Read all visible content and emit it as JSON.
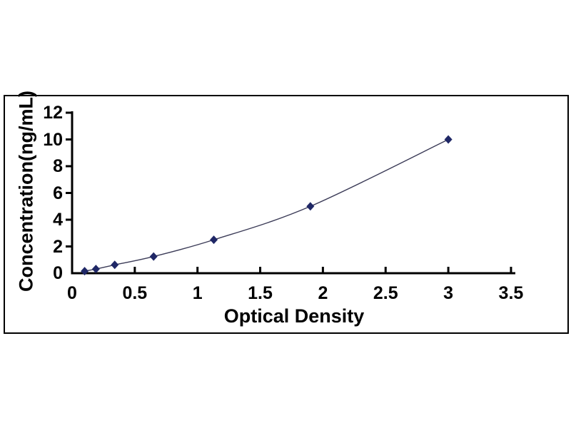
{
  "page": {
    "background": "#ffffff",
    "description": "ELISA standard curve line chart inside black-bordered frame"
  },
  "chart_data": {
    "type": "line",
    "title": "",
    "xlabel": "Optical Density",
    "ylabel": "Concentration(ng/mL)",
    "series": [
      {
        "name": "standard-curve",
        "x": [
          0.1,
          0.19,
          0.34,
          0.65,
          1.13,
          1.9,
          3.0
        ],
        "y": [
          0.156,
          0.312,
          0.625,
          1.25,
          2.5,
          5.0,
          10.0
        ]
      }
    ],
    "xlim": [
      0,
      3.5
    ],
    "ylim": [
      0,
      12
    ],
    "x_ticks": [
      0,
      0.5,
      1,
      1.5,
      2,
      2.5,
      3,
      3.5
    ],
    "x_tick_labels": [
      "0",
      "0.5",
      "1",
      "1.5",
      "2",
      "2.5",
      "3",
      "3.5"
    ],
    "y_ticks": [
      0,
      2,
      4,
      6,
      8,
      10,
      12
    ],
    "y_tick_labels": [
      "0",
      "2",
      "4",
      "6",
      "8",
      "10",
      "12"
    ],
    "grid": false,
    "legend_position": "none",
    "marker": "diamond",
    "line_style": "smooth",
    "colors": {
      "marker": "#1f2766",
      "line": "#3c3c58",
      "axis": "#000000",
      "text": "#000000",
      "frame_border": "#000000",
      "background": "#ffffff"
    }
  }
}
